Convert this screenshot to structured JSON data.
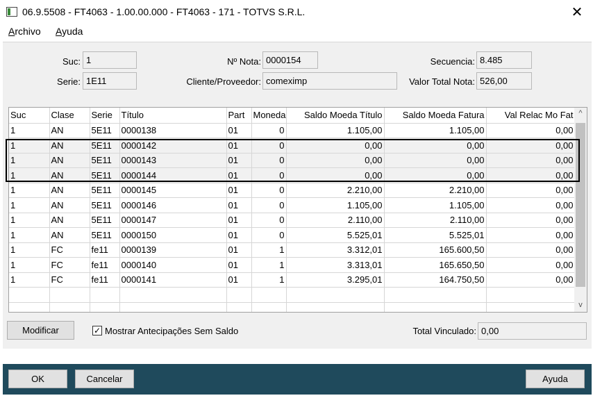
{
  "window": {
    "title": "06.9.5508 - FT4063 - 1.00.00.000 - FT4063 - 171 - TOTVS S.R.L.",
    "close_glyph": "✕"
  },
  "menu": {
    "archivo_first": "A",
    "archivo_rest": "rchivo",
    "ayuda_first": "A",
    "ayuda_rest": "yuda"
  },
  "header": {
    "suc_label": "Suc:",
    "suc_value": "1",
    "serie_label": "Serie:",
    "serie_value": "1E11",
    "nota_label": "Nº Nota:",
    "nota_value": "0000154",
    "cliente_label": "Cliente/Proveedor:",
    "cliente_value": "comeximp",
    "secuencia_label": "Secuencia:",
    "secuencia_value": "8.485",
    "valor_label": "Valor Total Nota:",
    "valor_value": "526,00"
  },
  "grid": {
    "columns": [
      "Suc",
      "Clase",
      "Serie",
      "Título",
      "Part",
      "Moneda",
      "Saldo Moeda Título",
      "Saldo Moeda Fatura",
      "Val Relac Mo Fat"
    ],
    "rows": [
      [
        "1",
        "AN",
        "5E11",
        "0000138",
        "01",
        "0",
        "1.105,00",
        "1.105,00",
        "0,00"
      ],
      [
        "1",
        "AN",
        "5E11",
        "0000142",
        "01",
        "0",
        "0,00",
        "0,00",
        "0,00"
      ],
      [
        "1",
        "AN",
        "5E11",
        "0000143",
        "01",
        "0",
        "0,00",
        "0,00",
        "0,00"
      ],
      [
        "1",
        "AN",
        "5E11",
        "0000144",
        "01",
        "0",
        "0,00",
        "0,00",
        "0,00"
      ],
      [
        "1",
        "AN",
        "5E11",
        "0000145",
        "01",
        "0",
        "2.210,00",
        "2.210,00",
        "0,00"
      ],
      [
        "1",
        "AN",
        "5E11",
        "0000146",
        "01",
        "0",
        "1.105,00",
        "1.105,00",
        "0,00"
      ],
      [
        "1",
        "AN",
        "5E11",
        "0000147",
        "01",
        "0",
        "2.110,00",
        "2.110,00",
        "0,00"
      ],
      [
        "1",
        "AN",
        "5E11",
        "0000150",
        "01",
        "0",
        "5.525,01",
        "5.525,01",
        "0,00"
      ],
      [
        "1",
        "FC",
        "fe11",
        "0000139",
        "01",
        "1",
        "3.312,01",
        "165.600,50",
        "0,00"
      ],
      [
        "1",
        "FC",
        "fe11",
        "0000140",
        "01",
        "1",
        "3.313,01",
        "165.650,50",
        "0,00"
      ],
      [
        "1",
        "FC",
        "fe11",
        "0000141",
        "01",
        "1",
        "3.295,01",
        "164.750,50",
        "0,00"
      ]
    ],
    "empty_rows": 2,
    "scroll_up": "^",
    "scroll_down": "v"
  },
  "controls": {
    "modificar": "Modificar",
    "mostrar_label": "Mostrar Antecipações Sem Saldo",
    "mostrar_checked": "✓",
    "total_label": "Total Vinculado:",
    "total_value": "0,00"
  },
  "footer": {
    "ok": "OK",
    "cancelar": "Cancelar",
    "ayuda": "Ayuda",
    "bar_color": "#1f4a5c"
  }
}
